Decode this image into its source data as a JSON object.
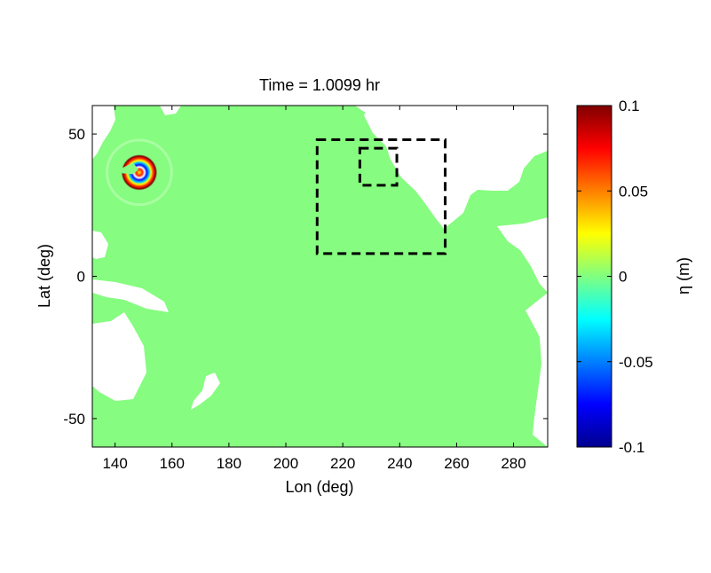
{
  "chart_data": {
    "type": "heatmap",
    "title": "Time = 1.0099 hr",
    "xlabel": "Lon (deg)",
    "ylabel": "Lat (deg)",
    "xlim": [
      132,
      292
    ],
    "ylim": [
      -60,
      60
    ],
    "xticks": [
      140,
      160,
      180,
      200,
      220,
      240,
      260,
      280
    ],
    "yticks": [
      -50,
      0,
      50
    ],
    "xtick_labels": [
      "140",
      "160",
      "180",
      "200",
      "220",
      "240",
      "260",
      "280"
    ],
    "ytick_labels": [
      "-50",
      "0",
      "50"
    ],
    "colorbar": {
      "label": "η (m)",
      "colormap": "jet",
      "range": [
        -0.1,
        0.1
      ],
      "ticks": [
        -0.1,
        -0.05,
        0,
        0.05,
        0.1
      ],
      "tick_labels": [
        "-0.1",
        "-0.05",
        "0",
        "0.05",
        "0.1"
      ]
    },
    "background_value": 0,
    "wave_source": {
      "center_lon": 148.5,
      "center_lat": 36.5,
      "inner_trough_radius_deg": 4,
      "crest_radius_deg": 7,
      "peak_value": 0.1,
      "trough_value": -0.1
    },
    "grid_boxes": [
      {
        "lon": [
          211,
          256
        ],
        "lat": [
          8,
          48
        ],
        "style": "dashed"
      },
      {
        "lon": [
          226,
          239
        ],
        "lat": [
          32,
          45
        ],
        "style": "dashed"
      }
    ],
    "land_color": "#ffffff",
    "grid": false
  }
}
